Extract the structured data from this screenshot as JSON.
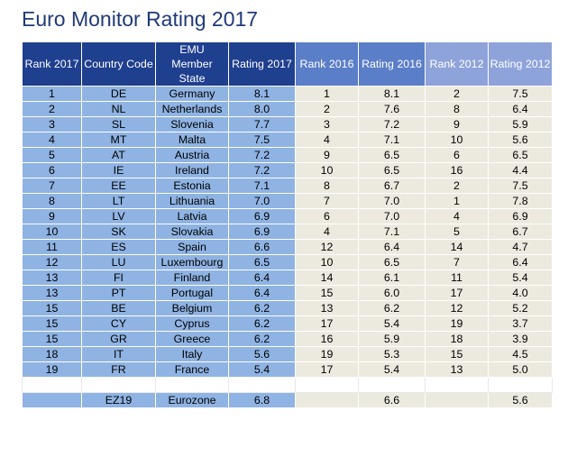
{
  "title": "Euro Monitor Rating 2017",
  "columns": [
    "Rank 2017",
    "Country Code",
    "EMU Member State",
    "Rating 2017",
    "Rank 2016",
    "Rating 2016",
    "Rank 2012",
    "Rating 2012"
  ],
  "header_emu_lines": [
    "EMU",
    "Member",
    "State"
  ],
  "colors": {
    "title": "#1f3a78",
    "header_2017": "#1f3f8f",
    "header_2016": "#5b7ec8",
    "header_2012": "#8ea3d9",
    "cell_2017": "#8fb3e3",
    "cell_other": "#ece9df"
  },
  "rows": [
    [
      "1",
      "DE",
      "Germany",
      "8.1",
      "1",
      "8.1",
      "2",
      "7.5"
    ],
    [
      "2",
      "NL",
      "Netherlands",
      "8.0",
      "2",
      "7.6",
      "8",
      "6.4"
    ],
    [
      "3",
      "SL",
      "Slovenia",
      "7.7",
      "3",
      "7.2",
      "9",
      "5.9"
    ],
    [
      "4",
      "MT",
      "Malta",
      "7.5",
      "4",
      "7.1",
      "10",
      "5.6"
    ],
    [
      "5",
      "AT",
      "Austria",
      "7.2",
      "9",
      "6.5",
      "6",
      "6.5"
    ],
    [
      "6",
      "IE",
      "Ireland",
      "7.2",
      "10",
      "6.5",
      "16",
      "4.4"
    ],
    [
      "7",
      "EE",
      "Estonia",
      "7.1",
      "8",
      "6.7",
      "2",
      "7.5"
    ],
    [
      "8",
      "LT",
      "Lithuania",
      "7.0",
      "7",
      "7.0",
      "1",
      "7.8"
    ],
    [
      "9",
      "LV",
      "Latvia",
      "6.9",
      "6",
      "7.0",
      "4",
      "6.9"
    ],
    [
      "10",
      "SK",
      "Slovakia",
      "6.9",
      "4",
      "7.1",
      "5",
      "6.7"
    ],
    [
      "11",
      "ES",
      "Spain",
      "6.6",
      "12",
      "6.4",
      "14",
      "4.7"
    ],
    [
      "12",
      "LU",
      "Luxembourg",
      "6.5",
      "10",
      "6.5",
      "7",
      "6.4"
    ],
    [
      "13",
      "FI",
      "Finland",
      "6.4",
      "14",
      "6.1",
      "11",
      "5.4"
    ],
    [
      "13",
      "PT",
      "Portugal",
      "6.4",
      "15",
      "6.0",
      "17",
      "4.0"
    ],
    [
      "15",
      "BE",
      "Belgium",
      "6.2",
      "13",
      "6.2",
      "12",
      "5.2"
    ],
    [
      "15",
      "CY",
      "Cyprus",
      "6.2",
      "17",
      "5.4",
      "19",
      "3.7"
    ],
    [
      "15",
      "GR",
      "Greece",
      "6.2",
      "16",
      "5.9",
      "18",
      "3.9"
    ],
    [
      "18",
      "IT",
      "Italy",
      "5.6",
      "19",
      "5.3",
      "15",
      "4.5"
    ],
    [
      "19",
      "FR",
      "France",
      "5.4",
      "17",
      "5.4",
      "13",
      "5.0"
    ]
  ],
  "eurozone": [
    "",
    "EZ19",
    "Eurozone",
    "6.8",
    "",
    "6.6",
    "",
    "5.6"
  ]
}
